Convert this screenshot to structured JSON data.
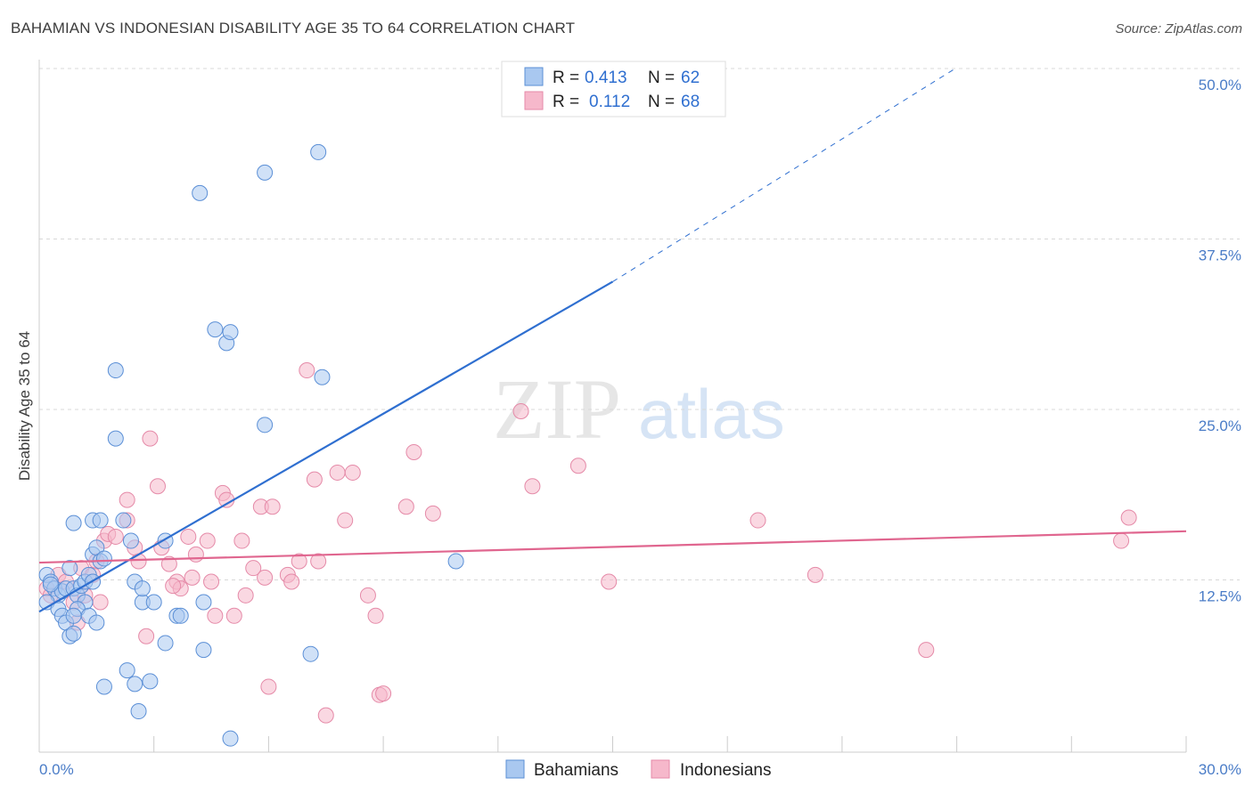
{
  "title": "BAHAMIAN VS INDONESIAN DISABILITY AGE 35 TO 64 CORRELATION CHART",
  "source": "Source: ZipAtlas.com",
  "watermark": {
    "zip": "ZIP",
    "atlas": "atlas"
  },
  "colors": {
    "blue_fill": "#a9c8f0",
    "blue_stroke": "#5b8fd6",
    "blue_line": "#2f6fd0",
    "pink_fill": "#f6b8cb",
    "pink_stroke": "#e58aa8",
    "pink_line": "#e0668f",
    "grid": "#d8d8d8",
    "tick_text": "#4a7cc7"
  },
  "legend": {
    "r_label": "R =",
    "n_label": "N =",
    "rows": [
      {
        "series": "Bahamians",
        "r": "0.413",
        "n": "62"
      },
      {
        "series": "Indonesians",
        "r": "0.112",
        "n": "68"
      }
    ]
  },
  "bottom_legend": [
    "Bahamians",
    "Indonesians"
  ],
  "chart_data": {
    "type": "scatter",
    "title": "BAHAMIAN VS INDONESIAN DISABILITY AGE 35 TO 64 CORRELATION CHART",
    "xlabel": "",
    "ylabel": "Disability Age 35 to 64",
    "xlim": [
      0,
      30
    ],
    "ylim": [
      0,
      50
    ],
    "x_tick_labels": [
      "0.0%",
      "30.0%"
    ],
    "y_ticks": [
      12.5,
      25.0,
      37.5,
      50.0
    ],
    "y_tick_labels": [
      "12.5%",
      "25.0%",
      "37.5%",
      "50.0%"
    ],
    "grid": true,
    "legend_position": "top-center",
    "series": [
      {
        "name": "Bahamians",
        "r": 0.413,
        "n": 62,
        "trend": {
          "x0": 0.0,
          "y0": 10.3,
          "x1": 15.0,
          "y1": 34.5,
          "dash_x1": 24.0,
          "dash_y1": 50.2
        },
        "points": [
          [
            0.2,
            13.0
          ],
          [
            0.3,
            12.5
          ],
          [
            0.4,
            12.0
          ],
          [
            0.5,
            11.5
          ],
          [
            0.6,
            11.8
          ],
          [
            0.7,
            12.0
          ],
          [
            0.2,
            11.0
          ],
          [
            0.3,
            12.3
          ],
          [
            0.5,
            10.5
          ],
          [
            0.6,
            10.0
          ],
          [
            0.7,
            9.5
          ],
          [
            0.8,
            13.5
          ],
          [
            0.9,
            12.0
          ],
          [
            1.0,
            11.5
          ],
          [
            1.1,
            12.2
          ],
          [
            1.2,
            12.5
          ],
          [
            1.3,
            13.0
          ],
          [
            1.4,
            14.5
          ],
          [
            1.5,
            15.0
          ],
          [
            1.6,
            14.0
          ],
          [
            1.4,
            12.5
          ],
          [
            1.2,
            11.0
          ],
          [
            1.0,
            10.5
          ],
          [
            0.9,
            10.0
          ],
          [
            0.8,
            8.5
          ],
          [
            0.9,
            8.7
          ],
          [
            1.3,
            10.0
          ],
          [
            1.5,
            9.5
          ],
          [
            1.4,
            17.0
          ],
          [
            1.6,
            17.0
          ],
          [
            2.2,
            17.0
          ],
          [
            2.4,
            15.5
          ],
          [
            2.5,
            12.5
          ],
          [
            2.7,
            11.0
          ],
          [
            3.0,
            11.0
          ],
          [
            3.3,
            15.5
          ],
          [
            3.6,
            10.0
          ],
          [
            3.7,
            10.0
          ],
          [
            4.3,
            11.0
          ],
          [
            4.3,
            7.5
          ],
          [
            3.3,
            8.0
          ],
          [
            2.3,
            6.0
          ],
          [
            2.5,
            5.0
          ],
          [
            2.9,
            5.2
          ],
          [
            1.7,
            4.8
          ],
          [
            2.6,
            3.0
          ],
          [
            5.0,
            1.0
          ],
          [
            4.6,
            31.0
          ],
          [
            4.9,
            30.0
          ],
          [
            5.0,
            30.8
          ],
          [
            2.0,
            28.0
          ],
          [
            2.0,
            23.0
          ],
          [
            5.9,
            24.0
          ],
          [
            7.4,
            27.5
          ],
          [
            4.2,
            41.0
          ],
          [
            5.9,
            42.5
          ],
          [
            7.3,
            44.0
          ],
          [
            10.9,
            14.0
          ],
          [
            7.1,
            7.2
          ],
          [
            0.9,
            16.8
          ],
          [
            1.7,
            14.2
          ],
          [
            2.7,
            12.0
          ]
        ]
      },
      {
        "name": "Indonesians",
        "r": 0.112,
        "n": 68,
        "trend": {
          "x0": 0.0,
          "y0": 13.9,
          "x1": 30.0,
          "y1": 16.2
        },
        "points": [
          [
            0.2,
            12.0
          ],
          [
            0.3,
            11.5
          ],
          [
            0.5,
            13.0
          ],
          [
            0.7,
            12.5
          ],
          [
            0.9,
            11.0
          ],
          [
            1.1,
            13.5
          ],
          [
            1.2,
            11.5
          ],
          [
            1.4,
            13.0
          ],
          [
            1.5,
            14.0
          ],
          [
            1.6,
            11.0
          ],
          [
            1.7,
            15.5
          ],
          [
            1.8,
            16.0
          ],
          [
            2.0,
            15.8
          ],
          [
            2.3,
            17.0
          ],
          [
            2.3,
            18.5
          ],
          [
            2.6,
            14.0
          ],
          [
            2.9,
            23.0
          ],
          [
            3.1,
            19.5
          ],
          [
            3.2,
            15.0
          ],
          [
            3.4,
            13.8
          ],
          [
            3.6,
            12.5
          ],
          [
            3.7,
            12.0
          ],
          [
            3.9,
            15.8
          ],
          [
            4.1,
            14.5
          ],
          [
            4.4,
            15.5
          ],
          [
            4.5,
            12.5
          ],
          [
            4.6,
            10.0
          ],
          [
            4.8,
            19.0
          ],
          [
            4.9,
            18.5
          ],
          [
            5.1,
            10.0
          ],
          [
            5.3,
            15.5
          ],
          [
            5.4,
            11.5
          ],
          [
            5.6,
            13.5
          ],
          [
            5.8,
            18.0
          ],
          [
            5.9,
            12.8
          ],
          [
            6.1,
            18.0
          ],
          [
            6.5,
            13.0
          ],
          [
            6.6,
            12.5
          ],
          [
            6.8,
            14.0
          ],
          [
            7.0,
            28.0
          ],
          [
            7.2,
            20.0
          ],
          [
            7.3,
            14.0
          ],
          [
            7.8,
            20.5
          ],
          [
            8.0,
            17.0
          ],
          [
            8.2,
            20.5
          ],
          [
            8.6,
            11.5
          ],
          [
            8.8,
            10.0
          ],
          [
            8.9,
            4.2
          ],
          [
            9.0,
            4.3
          ],
          [
            9.6,
            18.0
          ],
          [
            9.8,
            22.0
          ],
          [
            10.3,
            17.5
          ],
          [
            12.6,
            25.0
          ],
          [
            12.9,
            19.5
          ],
          [
            14.1,
            21.0
          ],
          [
            14.9,
            12.5
          ],
          [
            18.8,
            17.0
          ],
          [
            20.3,
            13.0
          ],
          [
            23.2,
            7.5
          ],
          [
            28.3,
            15.5
          ],
          [
            28.5,
            17.2
          ],
          [
            6.0,
            4.8
          ],
          [
            7.5,
            2.7
          ],
          [
            2.8,
            8.5
          ],
          [
            1.0,
            9.5
          ],
          [
            3.5,
            12.2
          ],
          [
            4.0,
            12.8
          ],
          [
            2.5,
            15.0
          ]
        ]
      }
    ]
  }
}
